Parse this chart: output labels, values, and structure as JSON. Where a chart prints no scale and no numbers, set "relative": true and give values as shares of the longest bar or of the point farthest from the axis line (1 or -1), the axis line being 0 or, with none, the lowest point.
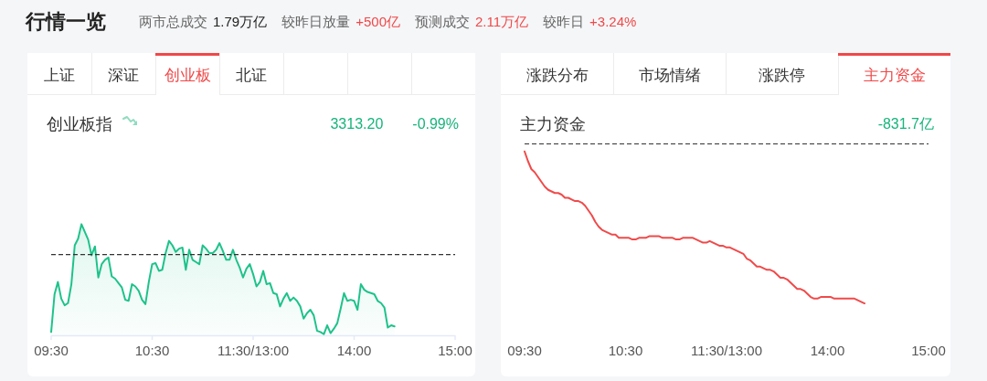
{
  "chart_data": [
    {
      "type": "other",
      "title": "行情一览",
      "annotations": [
        "两市总成交",
        "1.79万亿",
        "较昨日放量",
        "+500亿",
        "预测成交",
        "2.11万亿",
        "较昨日",
        "+3.24%"
      ]
    },
    {
      "type": "other",
      "categories": [
        "上证",
        "深证",
        "创业板",
        "北证",
        null,
        null,
        null
      ],
      "colors": [
        "#333333",
        "#333333",
        "#f04848",
        "#333333",
        "#333333",
        "#333333",
        "#333333"
      ]
    },
    {
      "type": "area",
      "title": "创业板指",
      "annotations": [
        "3313.20",
        "-0.99%"
      ],
      "relative": true,
      "color": "#1ec28b",
      "tick_labels": "x",
      "ref_lines": [
        {
          "axis": "y",
          "value": 0.73,
          "color": "#333333",
          "line_style": "dashed"
        }
      ],
      "categories": [
        "09:30",
        null,
        null,
        null,
        null,
        null,
        null,
        null,
        null,
        null,
        null,
        null,
        null,
        null,
        null,
        null,
        null,
        null,
        null,
        null,
        null,
        null,
        null,
        null,
        null,
        null,
        null,
        null,
        null,
        null,
        "10:30",
        null,
        null,
        null,
        null,
        null,
        null,
        null,
        null,
        null,
        null,
        null,
        null,
        null,
        null,
        null,
        null,
        null,
        null,
        null,
        null,
        null,
        null,
        null,
        null,
        null,
        null,
        null,
        null,
        null,
        "11:30/13:00",
        null,
        null,
        null,
        null,
        null,
        null,
        null,
        null,
        null,
        null,
        null,
        null,
        null,
        null,
        null,
        null,
        null,
        null,
        null,
        null,
        null,
        null,
        null,
        null,
        null,
        null,
        null,
        null,
        null,
        "14:00",
        null,
        null,
        null,
        null,
        null,
        null,
        null,
        null,
        null,
        null,
        null,
        null,
        null,
        null,
        null,
        null,
        null,
        null,
        null,
        null,
        null,
        null,
        null,
        null,
        null,
        null,
        null,
        null,
        null,
        "15:00"
      ],
      "values": [
        0.03,
        0.37,
        0.48,
        0.33,
        0.27,
        0.29,
        0.46,
        0.81,
        0.87,
        1.0,
        0.93,
        0.86,
        0.72,
        0.8,
        0.52,
        0.64,
        0.68,
        0.7,
        0.53,
        0.51,
        0.47,
        0.43,
        0.32,
        0.31,
        0.46,
        0.44,
        0.4,
        0.32,
        0.28,
        0.48,
        0.64,
        0.65,
        0.58,
        0.59,
        0.74,
        0.85,
        0.81,
        0.75,
        0.78,
        0.79,
        0.59,
        0.77,
        0.68,
        0.66,
        0.64,
        0.81,
        0.78,
        0.74,
        0.74,
        0.77,
        0.83,
        0.76,
        0.68,
        0.68,
        0.77,
        0.68,
        0.61,
        0.52,
        0.6,
        0.64,
        0.55,
        0.44,
        0.48,
        0.58,
        0.46,
        0.47,
        0.38,
        0.37,
        0.26,
        0.33,
        0.38,
        0.31,
        0.34,
        0.31,
        0.26,
        0.15,
        0.2,
        0.23,
        0.18,
        0.04,
        0.03,
        0.01,
        0.09,
        0.02,
        0.06,
        0.11,
        0.24,
        0.38,
        0.31,
        0.32,
        0.31,
        0.23,
        0.46,
        0.41,
        0.39,
        0.38,
        0.37,
        0.31,
        0.29,
        0.25,
        0.07,
        0.09,
        0.08,
        null,
        null,
        null,
        null,
        null,
        null,
        null,
        null,
        null,
        null,
        null,
        null,
        null,
        null,
        null,
        null,
        null,
        null
      ]
    },
    {
      "type": "other",
      "categories": [
        "涨跌分布",
        "市场情绪",
        "涨跌停",
        "主力资金"
      ],
      "colors": [
        "#333333",
        "#333333",
        "#333333",
        "#f04848"
      ]
    },
    {
      "type": "line",
      "title": "主力资金",
      "annotations": [
        "-831.7亿"
      ],
      "relative": true,
      "color": "#f04a4a",
      "tick_labels": "x",
      "ref_lines": [
        {
          "axis": "y",
          "value": 0,
          "color": "#333333",
          "line_style": "dashed"
        }
      ],
      "categories": [
        "09:30",
        null,
        null,
        null,
        null,
        null,
        null,
        null,
        null,
        null,
        null,
        null,
        null,
        null,
        null,
        null,
        null,
        null,
        null,
        null,
        null,
        null,
        null,
        null,
        null,
        null,
        null,
        null,
        null,
        null,
        "10:30",
        null,
        null,
        null,
        null,
        null,
        null,
        null,
        null,
        null,
        null,
        null,
        null,
        null,
        null,
        null,
        null,
        null,
        null,
        null,
        null,
        null,
        null,
        null,
        null,
        null,
        null,
        null,
        null,
        null,
        "11:30/13:00",
        null,
        null,
        null,
        null,
        null,
        null,
        null,
        null,
        null,
        null,
        null,
        null,
        null,
        null,
        null,
        null,
        null,
        null,
        null,
        null,
        null,
        null,
        null,
        null,
        null,
        null,
        null,
        null,
        null,
        "14:00",
        null,
        null,
        null,
        null,
        null,
        null,
        null,
        null,
        null,
        null,
        null,
        null,
        null,
        null,
        null,
        null,
        null,
        null,
        null,
        null,
        null,
        null,
        null,
        null,
        null,
        null,
        null,
        null,
        null,
        "15:00"
      ],
      "values": [
        -0.05,
        -0.11,
        -0.16,
        -0.18,
        -0.21,
        -0.24,
        -0.27,
        -0.29,
        -0.3,
        -0.31,
        -0.31,
        -0.32,
        -0.34,
        -0.34,
        -0.35,
        -0.36,
        -0.36,
        -0.37,
        -0.39,
        -0.42,
        -0.45,
        -0.49,
        -0.52,
        -0.54,
        -0.55,
        -0.56,
        -0.57,
        -0.57,
        -0.59,
        -0.59,
        -0.59,
        -0.59,
        -0.6,
        -0.6,
        -0.59,
        -0.59,
        -0.59,
        -0.58,
        -0.58,
        -0.58,
        -0.58,
        -0.59,
        -0.59,
        -0.59,
        -0.59,
        -0.6,
        -0.6,
        -0.59,
        -0.59,
        -0.59,
        -0.59,
        -0.6,
        -0.61,
        -0.62,
        -0.62,
        -0.61,
        -0.62,
        -0.63,
        -0.64,
        -0.64,
        -0.65,
        -0.65,
        -0.66,
        -0.67,
        -0.68,
        -0.69,
        -0.72,
        -0.73,
        -0.75,
        -0.77,
        -0.77,
        -0.78,
        -0.79,
        -0.79,
        -0.8,
        -0.82,
        -0.84,
        -0.84,
        -0.85,
        -0.87,
        -0.89,
        -0.91,
        -0.91,
        -0.92,
        -0.94,
        -0.96,
        -0.97,
        -0.97,
        -0.96,
        -0.96,
        -0.96,
        -0.96,
        -0.97,
        -0.97,
        -0.97,
        -0.97,
        -0.97,
        -0.97,
        -0.97,
        -0.98,
        -0.99,
        -1.0,
        null,
        null,
        null,
        null,
        null,
        null,
        null,
        null,
        null,
        null,
        null,
        null,
        null,
        null,
        null,
        null,
        null,
        null,
        null
      ]
    }
  ]
}
